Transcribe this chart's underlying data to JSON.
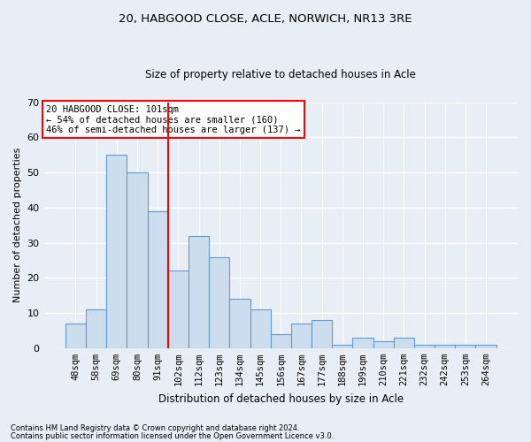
{
  "title1": "20, HABGOOD CLOSE, ACLE, NORWICH, NR13 3RE",
  "title2": "Size of property relative to detached houses in Acle",
  "xlabel": "Distribution of detached houses by size in Acle",
  "ylabel": "Number of detached properties",
  "categories": [
    "48sqm",
    "58sqm",
    "69sqm",
    "80sqm",
    "91sqm",
    "102sqm",
    "112sqm",
    "123sqm",
    "134sqm",
    "145sqm",
    "156sqm",
    "167sqm",
    "177sqm",
    "188sqm",
    "199sqm",
    "210sqm",
    "221sqm",
    "232sqm",
    "242sqm",
    "253sqm",
    "264sqm"
  ],
  "values": [
    7,
    11,
    55,
    50,
    39,
    22,
    32,
    26,
    14,
    11,
    4,
    7,
    8,
    1,
    3,
    2,
    3,
    1,
    1,
    1,
    1
  ],
  "bar_color": "#ccdded",
  "bar_edge_color": "#6699cc",
  "red_line_x": 4.5,
  "ylim": [
    0,
    70
  ],
  "yticks": [
    0,
    10,
    20,
    30,
    40,
    50,
    60,
    70
  ],
  "annotation_title": "20 HABGOOD CLOSE: 101sqm",
  "annotation_line1": "← 54% of detached houses are smaller (160)",
  "annotation_line2": "46% of semi-detached houses are larger (137) →",
  "footnote1": "Contains HM Land Registry data © Crown copyright and database right 2024.",
  "footnote2": "Contains public sector information licensed under the Open Government Licence v3.0.",
  "background_color": "#e8eef5",
  "plot_bg_color": "#e8eef5",
  "grid_color": "#ffffff",
  "title_fontsize": 9.5,
  "subtitle_fontsize": 8.5,
  "ylabel_fontsize": 8,
  "xlabel_fontsize": 8.5,
  "tick_fontsize": 7.5,
  "annotation_fontsize": 7.5,
  "footnote_fontsize": 6
}
